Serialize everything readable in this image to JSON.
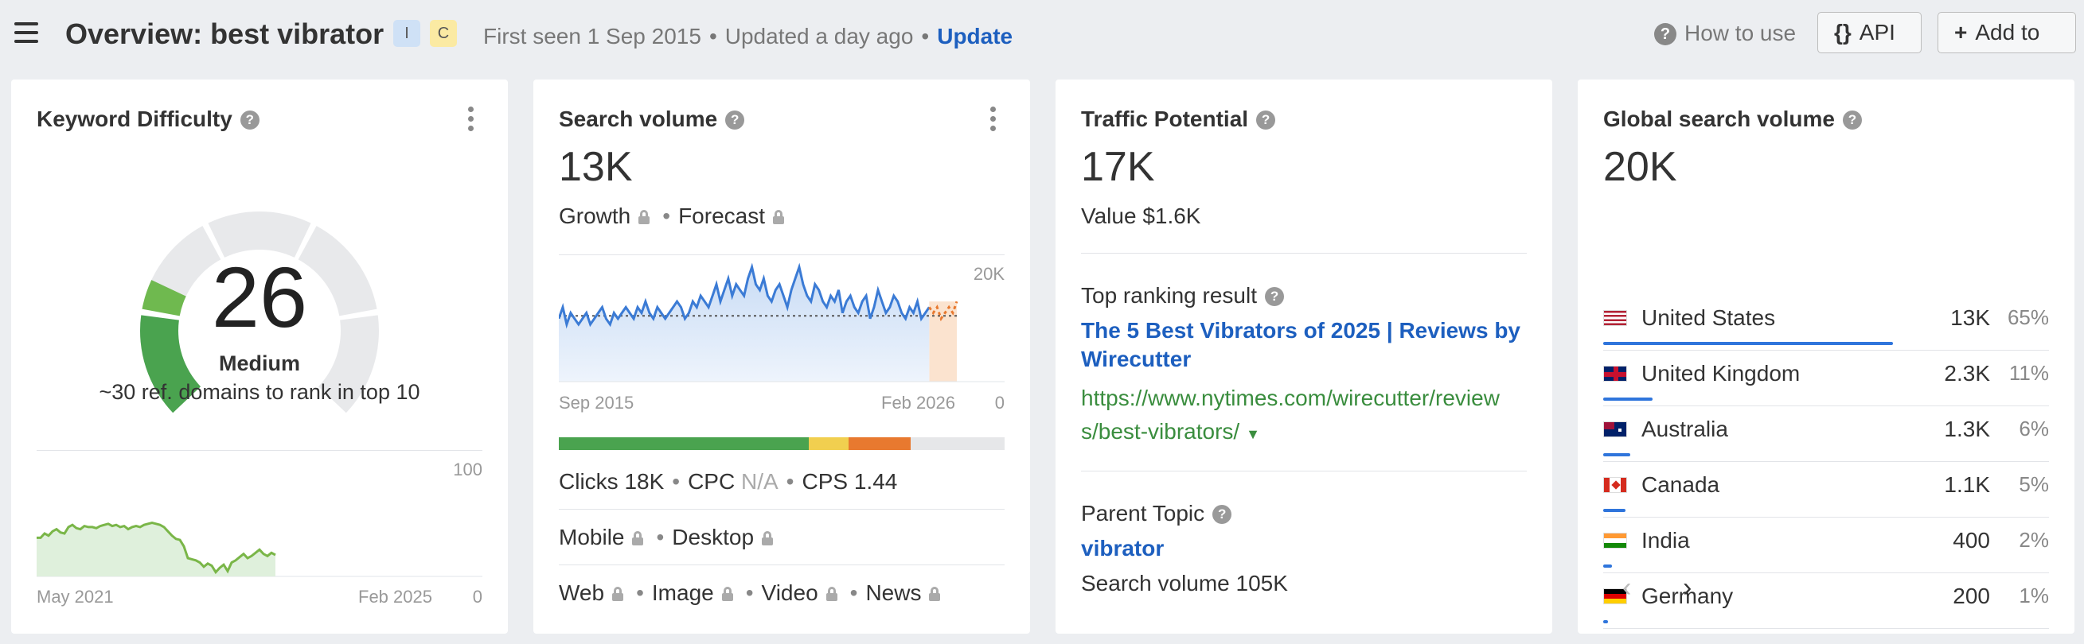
{
  "header": {
    "title": "Overview: best vibrator",
    "badge_i": "I",
    "badge_c": "C",
    "first_seen": "First seen 1 Sep 2015",
    "updated": "Updated a day ago",
    "update_link": "Update",
    "how_to_use": "How to use",
    "api_label": "API",
    "add_label": "Add to"
  },
  "kd": {
    "title": "Keyword Difficulty",
    "value": "26",
    "score": 26,
    "level": "Medium",
    "subtitle": "~30 ref. domains to rank in top 10",
    "chart": {
      "y_max": "100",
      "y_min": "0",
      "x_start": "May 2021",
      "x_end": "Feb 2025",
      "values": [
        36,
        36,
        40,
        38,
        42,
        44,
        41,
        40,
        46,
        48,
        45,
        44,
        47,
        46,
        46,
        45,
        47,
        48,
        49,
        47,
        48,
        46,
        47,
        44,
        46,
        47,
        46,
        48,
        49,
        50,
        49,
        48,
        46,
        42,
        38,
        35,
        34,
        28,
        17,
        16,
        15,
        13,
        9,
        12,
        10,
        4,
        8,
        11,
        5,
        13,
        15,
        18,
        21,
        17,
        19,
        22,
        25,
        21,
        19,
        22,
        20
      ]
    },
    "colors": {
      "green": "#4aa34f",
      "light_green": "#9ad07e",
      "track": "#e8e9eb"
    }
  },
  "sv": {
    "title": "Search volume",
    "value": "13K",
    "growth": "Growth",
    "forecast": "Forecast",
    "chart": {
      "y_max": "20K",
      "y_min": "0",
      "x_start": "Sep 2015",
      "x_end": "Feb 2026",
      "avg": 11.5,
      "values": [
        11,
        13,
        10,
        12,
        11,
        10,
        11,
        12,
        10,
        11,
        12,
        13,
        11,
        10,
        12,
        11,
        12,
        13,
        12,
        11,
        13,
        12,
        14,
        12,
        11,
        13,
        12,
        11,
        12,
        13,
        14,
        13,
        11,
        12,
        14,
        13,
        15,
        14,
        13,
        15,
        17,
        14,
        16,
        18,
        15,
        17,
        16,
        15,
        18,
        20,
        17,
        16,
        18,
        15,
        14,
        16,
        17,
        15,
        13,
        16,
        18,
        20,
        17,
        15,
        14,
        17,
        16,
        14,
        13,
        15,
        14,
        16,
        12,
        14,
        15,
        13,
        12,
        14,
        15,
        11,
        13,
        16,
        14,
        12,
        13,
        15,
        14,
        12,
        11,
        13,
        12,
        14,
        11,
        12,
        13
      ],
      "forecast_values": [
        12,
        13,
        11,
        12,
        13,
        12,
        14
      ]
    },
    "kd_segments": [
      {
        "color": "#4aa34f",
        "pct": 56
      },
      {
        "color": "#f1cf4f",
        "pct": 9
      },
      {
        "color": "#e8792f",
        "pct": 14
      },
      {
        "color": "#e6e7e9",
        "pct": 21
      }
    ],
    "clicks": "Clicks 18K",
    "cpc_label": "CPC",
    "cpc_value": "N/A",
    "cps": "CPS 1.44",
    "mobile": "Mobile",
    "desktop": "Desktop",
    "web": "Web",
    "image": "Image",
    "video": "Video",
    "news": "News"
  },
  "tp": {
    "title": "Traffic Potential",
    "value": "17K",
    "value_usd": "Value $1.6K",
    "top_result_label": "Top ranking result",
    "top_result_title_1": "The 5 Best Vibrators of 2025 | Reviews by",
    "top_result_title_2": "Wirecutter",
    "url_1": "https://www.nytimes.com/wirecutter/review",
    "url_2": "s/best-vibrators/",
    "parent_topic_label": "Parent Topic",
    "parent_topic": "vibrator",
    "parent_volume": "Search volume 105K"
  },
  "gsv": {
    "title": "Global search volume",
    "value": "20K",
    "countries": [
      {
        "name": "United States",
        "volume": "13K",
        "pct": "65%",
        "share": 65,
        "flag": "us"
      },
      {
        "name": "United Kingdom",
        "volume": "2.3K",
        "pct": "11%",
        "share": 11,
        "flag": "uk"
      },
      {
        "name": "Australia",
        "volume": "1.3K",
        "pct": "6%",
        "share": 6,
        "flag": "au"
      },
      {
        "name": "Canada",
        "volume": "1.1K",
        "pct": "5%",
        "share": 5,
        "flag": "ca"
      },
      {
        "name": "India",
        "volume": "400",
        "pct": "2%",
        "share": 2,
        "flag": "in"
      },
      {
        "name": "Germany",
        "volume": "200",
        "pct": "1%",
        "share": 1,
        "flag": "de"
      }
    ],
    "prev": "‹",
    "next": "›"
  }
}
